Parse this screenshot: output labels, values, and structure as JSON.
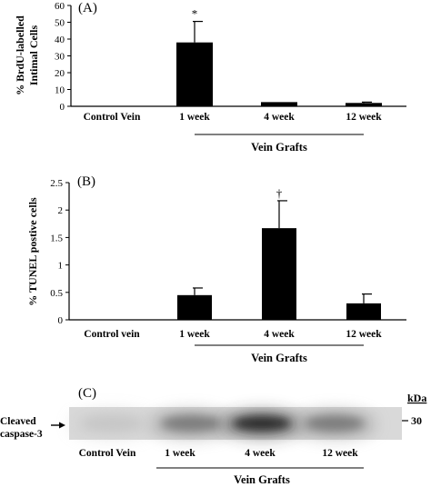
{
  "chart_data": [
    {
      "type": "bar",
      "panel_label": "(A)",
      "ylabel_lines": [
        "% BrdU-labelled",
        "Intimal Cells"
      ],
      "categories": [
        "Control Vein",
        "1 week",
        "4 week",
        "12 week"
      ],
      "values": [
        0,
        38,
        2.5,
        2
      ],
      "errors": [
        0,
        12.5,
        0,
        0.5
      ],
      "significance": [
        "",
        "*",
        "",
        ""
      ],
      "ylim": [
        0,
        60
      ],
      "yticks": [
        "0",
        "10",
        "20",
        "30",
        "40",
        "50",
        "60"
      ],
      "group_label": "Vein Grafts",
      "grid": false
    },
    {
      "type": "bar",
      "panel_label": "(B)",
      "ylabel_lines": [
        "% TUNEL postive cells"
      ],
      "categories": [
        "Control vein",
        "1 week",
        "4 week",
        "12 week"
      ],
      "values": [
        0,
        0.45,
        1.67,
        0.3
      ],
      "errors": [
        0,
        0.13,
        0.5,
        0.17
      ],
      "significance": [
        "",
        "",
        "†",
        ""
      ],
      "ylim": [
        0,
        2.5
      ],
      "yticks": [
        "0",
        "0.5",
        "1",
        "1.5",
        "2",
        "2.5"
      ],
      "group_label": "Vein Grafts",
      "grid": false
    }
  ],
  "blot": {
    "panel_label": "(C)",
    "row_label_lines": [
      "Cleaved",
      "caspase-3"
    ],
    "unit_label": "kDa",
    "marker": "30",
    "lanes": [
      "Control Vein",
      "1 week",
      "4 week",
      "12 week"
    ],
    "band_intensity": [
      0.08,
      0.45,
      0.85,
      0.45
    ],
    "group_label": "Vein Grafts"
  }
}
